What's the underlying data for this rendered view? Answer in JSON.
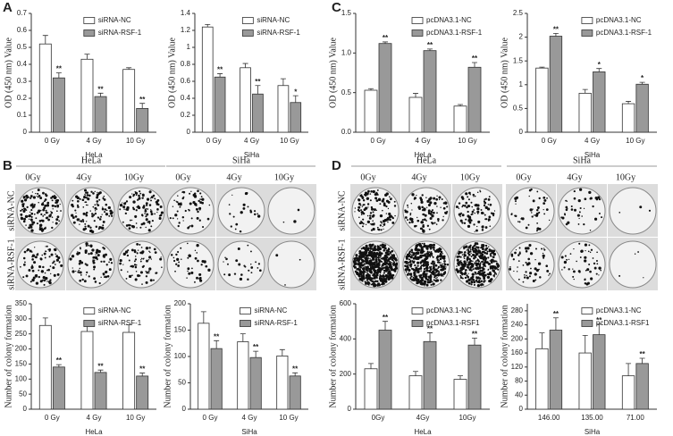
{
  "panel_labels": [
    "A",
    "B",
    "C",
    "D"
  ],
  "colony_images": [
    {
      "cell_lines": [
        "HeLa",
        "SiHa"
      ],
      "doses": [
        "0Gy",
        "4Gy",
        "10Gy"
      ],
      "rows": [
        "siRNA-NC",
        "siRNA-RSF-1"
      ]
    },
    {
      "cell_lines": [
        "HeLa",
        "SiHa"
      ],
      "doses": [
        "0Gy",
        "4Gy",
        "10Gy"
      ],
      "rows": [
        "siRNA-NC",
        "siRNA-RSF-1"
      ]
    }
  ],
  "chart_data": [
    {
      "type": "bar",
      "ylabel": "OD (450 nm) Value",
      "xlabel": "HeLa",
      "categories": [
        "0 Gy",
        "4 Gy",
        "10 Gy"
      ],
      "series": [
        {
          "name": "siRNA-NC",
          "color": "#ffffff",
          "values": [
            0.52,
            0.43,
            0.37
          ],
          "errors": [
            0.05,
            0.03,
            0.01
          ]
        },
        {
          "name": "siRNA-RSF-1",
          "color": "#999999",
          "values": [
            0.32,
            0.21,
            0.14
          ],
          "errors": [
            0.03,
            0.02,
            0.03
          ],
          "annotations": [
            "**",
            "**",
            "**"
          ]
        }
      ],
      "ylim": [
        0,
        0.7
      ],
      "yticks": [
        0,
        0.1,
        0.2,
        0.3,
        0.4,
        0.5,
        0.6,
        0.7
      ]
    },
    {
      "type": "bar",
      "ylabel": "OD (450 nm) Value",
      "xlabel": "SiHa",
      "categories": [
        "0 Gy",
        "4 Gy",
        "10 Gy"
      ],
      "series": [
        {
          "name": "siRNA-NC",
          "color": "#ffffff",
          "values": [
            1.24,
            0.76,
            0.55
          ],
          "errors": [
            0.03,
            0.05,
            0.08
          ]
        },
        {
          "name": "siRNA-RSF-1",
          "color": "#999999",
          "values": [
            0.65,
            0.45,
            0.35
          ],
          "errors": [
            0.04,
            0.1,
            0.08
          ],
          "annotations": [
            "**",
            "**",
            "*"
          ]
        }
      ],
      "ylim": [
        0,
        1.4
      ],
      "yticks": [
        0,
        0.2,
        0.4,
        0.6,
        0.8,
        1,
        1.2,
        1.4
      ]
    },
    {
      "type": "bar",
      "ylabel": "OD (450 nm) Value",
      "xlabel": "HeLa",
      "categories": [
        "0 Gy",
        "4 Gy",
        "10 Gy"
      ],
      "series": [
        {
          "name": "pcDNA3.1-NC",
          "color": "#ffffff",
          "values": [
            0.53,
            0.44,
            0.33
          ],
          "errors": [
            0.02,
            0.05,
            0.02
          ]
        },
        {
          "name": "pcDNA3.1-RSF-1",
          "color": "#999999",
          "values": [
            1.12,
            1.03,
            0.82
          ],
          "errors": [
            0.02,
            0.02,
            0.06
          ],
          "annotations": [
            "**",
            "**",
            "**"
          ]
        }
      ],
      "ylim": [
        0,
        1.5
      ],
      "yticks": [
        {
          "value": 0,
          "label": "0.0"
        },
        0.5,
        {
          "value": 1,
          "label": "1.0"
        },
        1.5
      ]
    },
    {
      "type": "bar",
      "ylabel": "OD (450 nm) Value",
      "xlabel": "SiHa",
      "categories": [
        "0 Gy",
        "4 Gy",
        "10 Gy"
      ],
      "series": [
        {
          "name": "pcDNA3.1-NC",
          "color": "#ffffff",
          "values": [
            1.35,
            0.82,
            0.6
          ],
          "errors": [
            0.02,
            0.08,
            0.05
          ]
        },
        {
          "name": "pcDNA3.1-RSF-1",
          "color": "#999999",
          "values": [
            2.02,
            1.27,
            1.01
          ],
          "errors": [
            0.06,
            0.07,
            0.04
          ],
          "annotations": [
            "**",
            "*",
            "*"
          ]
        }
      ],
      "ylim": [
        0,
        2.5
      ],
      "yticks": [
        0,
        0.5,
        1,
        1.5,
        2,
        2.5
      ]
    },
    {
      "type": "bar",
      "ylabel": "Number of colony formation",
      "xlabel": "HeLa",
      "categories": [
        "0 Gy",
        "4 Gy",
        "10 Gy"
      ],
      "series": [
        {
          "name": "siRNA-NC",
          "color": "#ffffff",
          "values": [
            278,
            258,
            255
          ],
          "errors": [
            25,
            25,
            25
          ]
        },
        {
          "name": "siRNA-RSF-1",
          "color": "#999999",
          "values": [
            140,
            122,
            110
          ],
          "errors": [
            8,
            8,
            10
          ],
          "annotations": [
            "**",
            "**",
            "**"
          ]
        }
      ],
      "ylim": [
        0,
        350
      ],
      "yticks": [
        0,
        50,
        100,
        150,
        200,
        250,
        300,
        350
      ]
    },
    {
      "type": "bar",
      "ylabel": "Number of colony formation",
      "xlabel": "SiHa",
      "categories": [
        "0 Gy",
        "4 Gy",
        "10 Gy"
      ],
      "series": [
        {
          "name": "siRNA-NC",
          "color": "#ffffff",
          "values": [
            163,
            128,
            101
          ],
          "errors": [
            22,
            15,
            12
          ]
        },
        {
          "name": "siRNA-RSF-1",
          "color": "#999999",
          "values": [
            115,
            98,
            63
          ],
          "errors": [
            15,
            12,
            6
          ],
          "annotations": [
            "**",
            "**",
            "**"
          ]
        }
      ],
      "ylim": [
        0,
        200
      ],
      "yticks": [
        0,
        50,
        100,
        150,
        200
      ]
    },
    {
      "type": "bar",
      "ylabel": "Number of colony formation",
      "xlabel": "HeLa",
      "categories": [
        "0Gy",
        "4Gy",
        "10Gy"
      ],
      "series": [
        {
          "name": "pcDNA3.1-NC",
          "color": "#ffffff",
          "values": [
            230,
            190,
            170
          ],
          "errors": [
            30,
            25,
            20
          ]
        },
        {
          "name": "pcDNA3.1-RSF1",
          "color": "#999999",
          "values": [
            450,
            385,
            365
          ],
          "errors": [
            50,
            50,
            40
          ],
          "annotations": [
            "**",
            "**",
            "**"
          ]
        }
      ],
      "ylim": [
        0,
        600
      ],
      "yticks": [
        0,
        200,
        400,
        600
      ]
    },
    {
      "type": "bar",
      "ylabel": "Number of colony formation",
      "xlabel": "SiHa",
      "categories": [
        "146.00",
        "135.00",
        "71.00"
      ],
      "series": [
        {
          "name": "pcDNA3.1-NC",
          "color": "#ffffff",
          "values": [
            172,
            160,
            95
          ],
          "errors": [
            45,
            50,
            35
          ]
        },
        {
          "name": "pcDNA3.1-RSF1",
          "color": "#999999",
          "values": [
            225,
            212,
            130
          ],
          "errors": [
            35,
            30,
            15
          ],
          "annotations": [
            "**",
            "**",
            "**"
          ]
        }
      ],
      "ylim": [
        0,
        300
      ],
      "yticks": [
        0,
        40,
        80,
        120,
        160,
        200,
        240,
        280
      ]
    }
  ]
}
